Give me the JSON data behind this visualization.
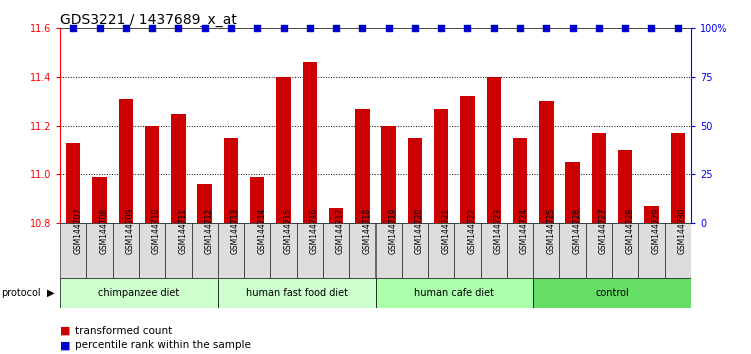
{
  "title": "GDS3221 / 1437689_x_at",
  "samples": [
    "GSM144707",
    "GSM144708",
    "GSM144709",
    "GSM144710",
    "GSM144711",
    "GSM144712",
    "GSM144713",
    "GSM144714",
    "GSM144715",
    "GSM144716",
    "GSM144717",
    "GSM144718",
    "GSM144719",
    "GSM144720",
    "GSM144721",
    "GSM144722",
    "GSM144723",
    "GSM144724",
    "GSM144725",
    "GSM144726",
    "GSM144727",
    "GSM144728",
    "GSM144729",
    "GSM144730"
  ],
  "values": [
    11.13,
    10.99,
    11.31,
    11.2,
    11.25,
    10.96,
    11.15,
    10.99,
    11.4,
    11.46,
    10.86,
    11.27,
    11.2,
    11.15,
    11.27,
    11.32,
    11.4,
    11.15,
    11.3,
    11.05,
    11.17,
    11.1,
    10.87,
    11.17
  ],
  "groups": [
    {
      "label": "chimpanzee diet",
      "start": 0,
      "end": 6,
      "color": "#CCFFCC"
    },
    {
      "label": "human fast food diet",
      "start": 6,
      "end": 12,
      "color": "#CCFFCC"
    },
    {
      "label": "human cafe diet",
      "start": 12,
      "end": 18,
      "color": "#AAFFAA"
    },
    {
      "label": "control",
      "start": 18,
      "end": 24,
      "color": "#66DD66"
    }
  ],
  "bar_color": "#CC0000",
  "dot_color": "#0000CC",
  "ylim_left": [
    10.8,
    11.6
  ],
  "ylim_right": [
    0,
    100
  ],
  "yticks_left": [
    10.8,
    11.0,
    11.2,
    11.4,
    11.6
  ],
  "yticks_right": [
    0,
    25,
    50,
    75,
    100
  ],
  "bg_color": "#FFFFFF",
  "title_fontsize": 10
}
